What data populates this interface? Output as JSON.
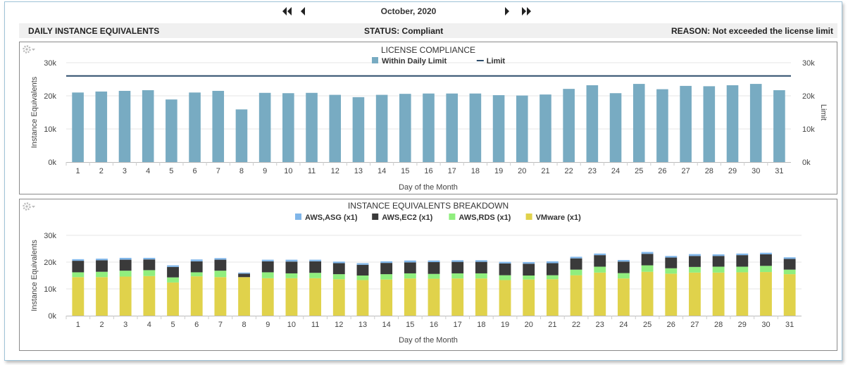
{
  "nav": {
    "month": "October, 2020"
  },
  "status": {
    "left": "DAILY INSTANCE EQUIVALENTS",
    "center": "STATUS: Compliant",
    "right": "REASON: Not exceeded the license limit"
  },
  "colors": {
    "bar": "#78abc2",
    "limit": "#2d4d6b",
    "asg": "#80b6e9",
    "ec2": "#3a3a3a",
    "rds": "#90ee7e",
    "vmware": "#e0d24b"
  },
  "chart_data": [
    {
      "type": "bar",
      "title": "LICENSE COMPLIANCE",
      "xlabel": "Day of the Month",
      "ylabel": "Instance Equivalents",
      "y2label": "Limit",
      "ylim": [
        0,
        30000
      ],
      "yticks": [
        "0k",
        "10k",
        "20k",
        "30k"
      ],
      "legend_position": "top-center",
      "categories": [
        "1",
        "2",
        "3",
        "4",
        "5",
        "6",
        "7",
        "8",
        "9",
        "10",
        "11",
        "12",
        "13",
        "14",
        "15",
        "16",
        "17",
        "18",
        "19",
        "20",
        "21",
        "22",
        "23",
        "24",
        "25",
        "26",
        "27",
        "28",
        "29",
        "30",
        "31"
      ],
      "series": [
        {
          "name": "Within Daily Limit",
          "type": "bar",
          "values": [
            21000,
            21300,
            21500,
            21700,
            18900,
            21000,
            21500,
            15900,
            20900,
            20800,
            20900,
            20300,
            19600,
            20300,
            20600,
            20700,
            20700,
            20700,
            20200,
            20100,
            20400,
            22100,
            23200,
            20800,
            23600,
            22000,
            23000,
            22900,
            23200,
            23600,
            21700
          ]
        },
        {
          "name": "Limit",
          "type": "line",
          "value": 26000
        }
      ]
    },
    {
      "type": "bar",
      "stacked": true,
      "title": "INSTANCE EQUIVALENTS BREAKDOWN",
      "xlabel": "Day of the Month",
      "ylabel": "Instance Equivalents",
      "ylim": [
        0,
        30000
      ],
      "yticks": [
        "0k",
        "10k",
        "20k",
        "30k"
      ],
      "legend_position": "top-center",
      "categories": [
        "1",
        "2",
        "3",
        "4",
        "5",
        "6",
        "7",
        "8",
        "9",
        "10",
        "11",
        "12",
        "13",
        "14",
        "15",
        "16",
        "17",
        "18",
        "19",
        "20",
        "21",
        "22",
        "23",
        "24",
        "25",
        "26",
        "27",
        "28",
        "29",
        "30",
        "31"
      ],
      "series": [
        {
          "name": "VMware (x1)",
          "values": [
            14400,
            14400,
            14600,
            14800,
            12400,
            14700,
            14400,
            14400,
            14000,
            14000,
            14000,
            13600,
            13300,
            13500,
            13900,
            13800,
            13900,
            13900,
            13300,
            13500,
            13600,
            15100,
            16100,
            13900,
            16400,
            15700,
            16100,
            16100,
            16200,
            16300,
            15500
          ]
        },
        {
          "name": "AWS,RDS (x1)",
          "values": [
            1800,
            2000,
            2200,
            2200,
            1900,
            1500,
            2400,
            0,
            2200,
            1800,
            2000,
            1900,
            1700,
            2000,
            1900,
            1800,
            1900,
            1900,
            1800,
            1500,
            1500,
            2100,
            2200,
            2000,
            2400,
            2000,
            2100,
            2200,
            2100,
            2300,
            1700
          ]
        },
        {
          "name": "AWS,EC2 (x1)",
          "values": [
            4300,
            4300,
            4100,
            4000,
            3900,
            4100,
            4100,
            1300,
            4100,
            4400,
            4300,
            4100,
            4000,
            4200,
            4100,
            4400,
            4300,
            4300,
            4400,
            4400,
            4500,
            4200,
            4300,
            4300,
            4300,
            4000,
            4100,
            4000,
            4300,
            4300,
            4000
          ]
        },
        {
          "name": "AWS,ASG (x1)",
          "values": [
            600,
            600,
            700,
            600,
            600,
            700,
            600,
            400,
            600,
            700,
            600,
            600,
            600,
            600,
            700,
            600,
            600,
            600,
            600,
            600,
            700,
            600,
            600,
            600,
            700,
            600,
            700,
            600,
            600,
            600,
            600
          ]
        }
      ]
    }
  ]
}
